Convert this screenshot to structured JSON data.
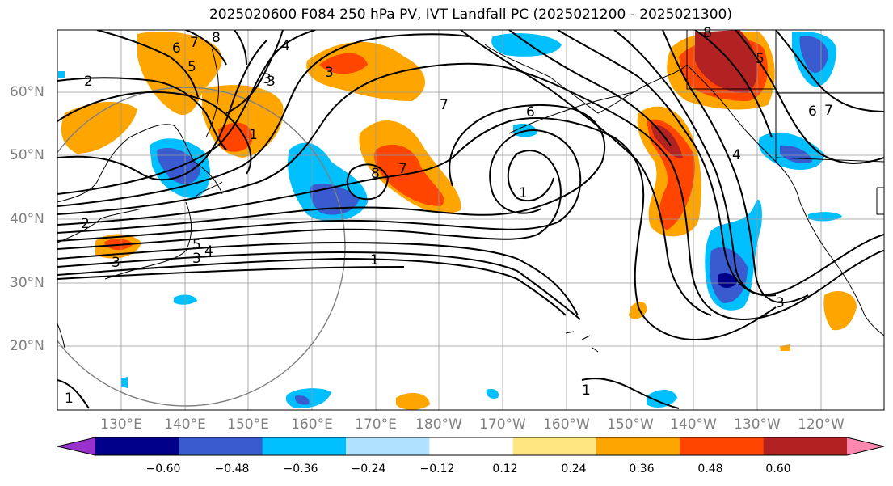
{
  "title": "2025020600 F084 250 hPa PV, IVT Landfall PC (2025021200 - 2025021300)",
  "lat_labels": [
    "60°N",
    "50°N",
    "40°N",
    "30°N",
    "20°N"
  ],
  "lon_labels": [
    "130°E",
    "140°E",
    "150°E",
    "160°E",
    "170°E",
    "180°W",
    "170°W",
    "160°W",
    "150°W",
    "140°W",
    "130°W",
    "120°W"
  ],
  "colorbar": {
    "ticks": [
      "−0.60",
      "−0.48",
      "−0.36",
      "−0.24",
      "−0.12",
      "0.12",
      "0.24",
      "0.36",
      "0.48",
      "0.60"
    ],
    "colors": [
      "#9932cc",
      "#00008b",
      "#3a5bcf",
      "#00bfff",
      "#b0e2ff",
      "#ffffff",
      "#ffe680",
      "#ffa500",
      "#ff4500",
      "#b22222",
      "#ff88b0"
    ]
  },
  "contour_labels": [
    "2",
    "6",
    "8",
    "5",
    "4",
    "3",
    "3",
    "1",
    "7",
    "6",
    "7",
    "8",
    "7",
    "1",
    "6",
    "7",
    "5",
    "4",
    "3",
    "1",
    "3",
    "5",
    "4",
    "3",
    "2",
    "1",
    "1",
    "3",
    "8"
  ],
  "map_data": {
    "region": "North Pacific",
    "lon_range": [
      "120°E",
      "115°W"
    ],
    "lat_range": [
      "10°N",
      "70°N"
    ]
  }
}
